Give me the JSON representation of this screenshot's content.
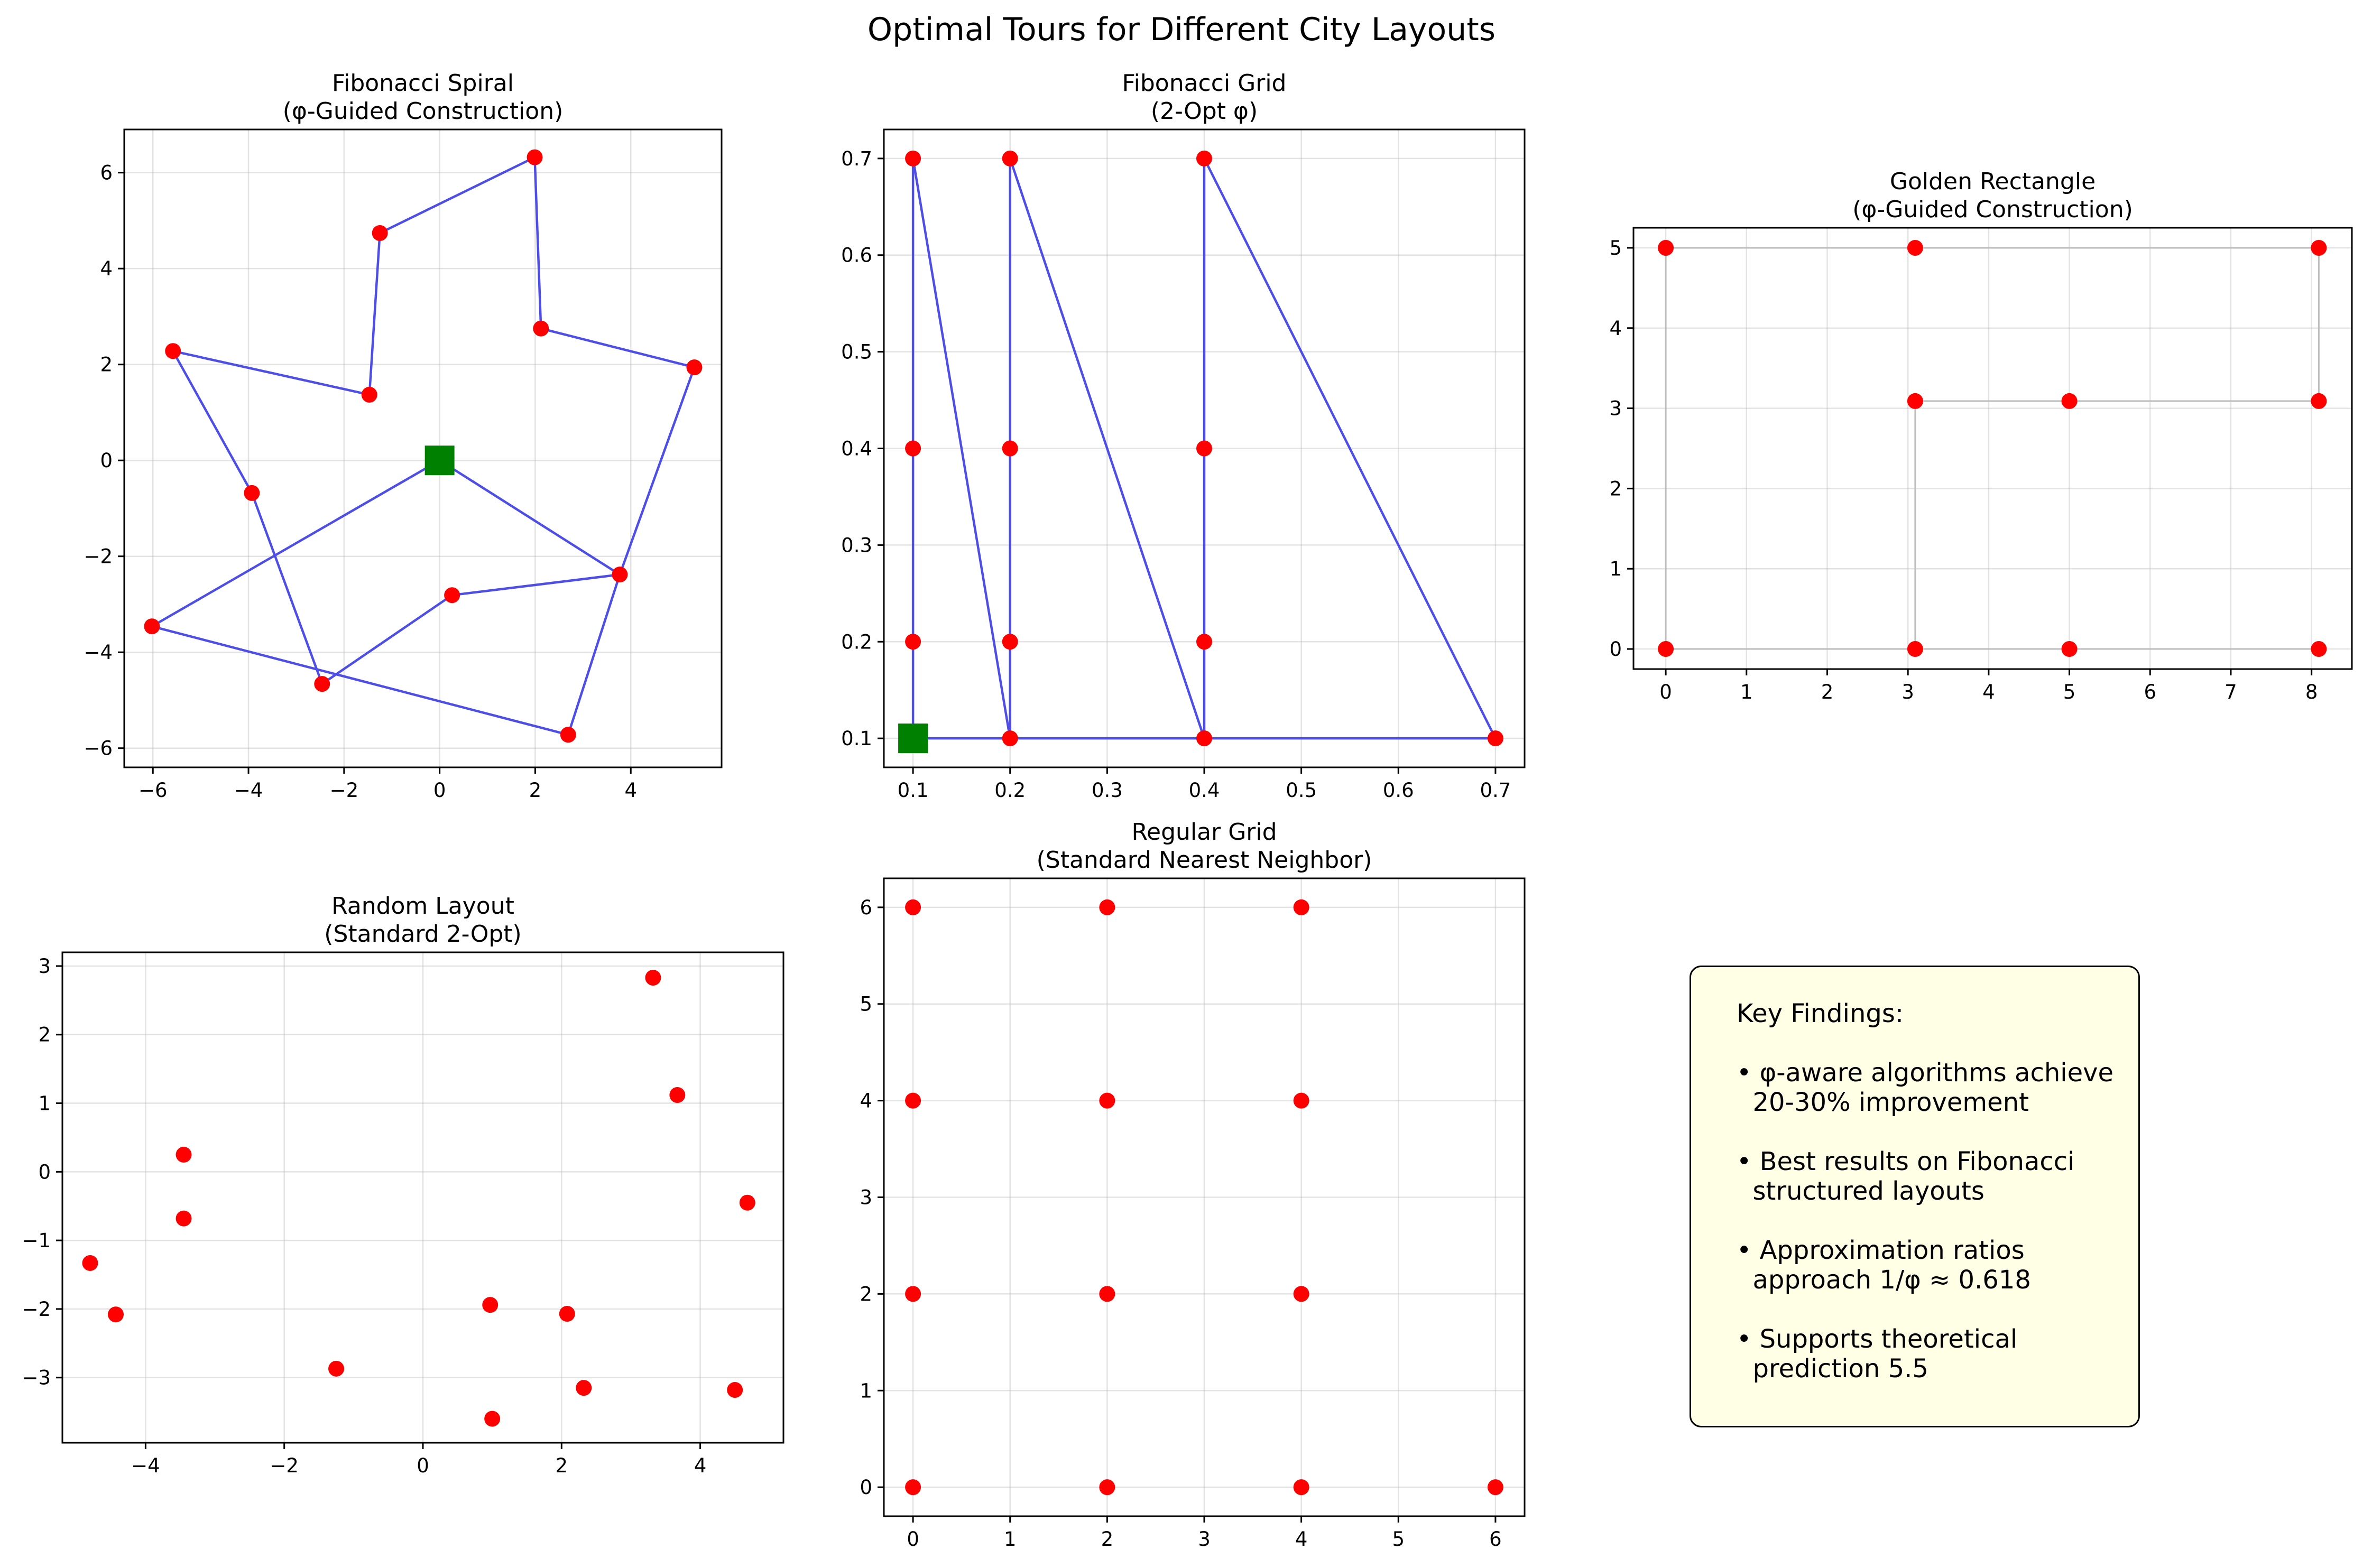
{
  "figure": {
    "title": "Optimal Tours for Different City Layouts"
  },
  "chart_data": [
    {
      "id": "fib-spiral",
      "type": "line",
      "title_lines": [
        "Fibonacci Spiral",
        "(φ-Guided Construction)"
      ],
      "xlim": [
        -6.6,
        5.9
      ],
      "ylim": [
        -6.4,
        6.9
      ],
      "xticks": [
        -6,
        -4,
        -2,
        0,
        2,
        4
      ],
      "yticks": [
        -6,
        -4,
        -2,
        0,
        2,
        4,
        6
      ],
      "xtick_labels": [
        "−6",
        "−4",
        "−2",
        "0",
        "2",
        "4"
      ],
      "ytick_labels": [
        "−6",
        "−4",
        "−2",
        "0",
        "2",
        "4",
        "6"
      ],
      "grid": true,
      "tour": [
        [
          0,
          0
        ],
        [
          3.77,
          -2.38
        ],
        [
          5.33,
          1.94
        ],
        [
          2.12,
          2.75
        ],
        [
          1.99,
          6.32
        ],
        [
          -1.25,
          4.74
        ],
        [
          -1.47,
          1.37
        ],
        [
          -5.58,
          2.28
        ],
        [
          -3.93,
          -0.68
        ],
        [
          -2.46,
          -4.66
        ],
        [
          0.26,
          -2.81
        ],
        [
          3.77,
          -2.38
        ],
        [
          2.69,
          -5.72
        ],
        [
          -6.02,
          -3.46
        ],
        [
          0,
          0
        ]
      ],
      "cities": [
        [
          0.26,
          -2.81
        ],
        [
          3.77,
          -2.38
        ],
        [
          5.33,
          1.94
        ],
        [
          2.12,
          2.75
        ],
        [
          1.99,
          6.32
        ],
        [
          -1.25,
          4.74
        ],
        [
          -1.47,
          1.37
        ],
        [
          -5.58,
          2.28
        ],
        [
          -3.93,
          -0.68
        ],
        [
          -2.46,
          -4.66
        ],
        [
          2.69,
          -5.72
        ],
        [
          -6.02,
          -3.46
        ]
      ],
      "start": [
        0,
        0
      ],
      "line_color": "#4d4de8",
      "city_color": "#ff0000",
      "start_color": "#008000"
    },
    {
      "id": "fib-grid",
      "type": "line",
      "title_lines": [
        "Fibonacci Grid",
        "(2-Opt φ)"
      ],
      "xlim": [
        0.07,
        0.73
      ],
      "ylim": [
        0.07,
        0.73
      ],
      "xticks": [
        0.1,
        0.2,
        0.3,
        0.4,
        0.5,
        0.6,
        0.7
      ],
      "yticks": [
        0.1,
        0.2,
        0.3,
        0.4,
        0.5,
        0.6,
        0.7
      ],
      "xtick_labels": [
        "0.1",
        "0.2",
        "0.3",
        "0.4",
        "0.5",
        "0.6",
        "0.7"
      ],
      "ytick_labels": [
        "0.1",
        "0.2",
        "0.3",
        "0.4",
        "0.5",
        "0.6",
        "0.7"
      ],
      "grid": true,
      "tour": [
        [
          0.1,
          0.1
        ],
        [
          0.1,
          0.2
        ],
        [
          0.1,
          0.4
        ],
        [
          0.1,
          0.7
        ],
        [
          0.2,
          0.1
        ],
        [
          0.2,
          0.2
        ],
        [
          0.2,
          0.4
        ],
        [
          0.2,
          0.7
        ],
        [
          0.4,
          0.1
        ],
        [
          0.4,
          0.2
        ],
        [
          0.4,
          0.4
        ],
        [
          0.4,
          0.7
        ],
        [
          0.7,
          0.1
        ],
        [
          0.4,
          0.1
        ],
        [
          0.2,
          0.1
        ],
        [
          0.1,
          0.1
        ]
      ],
      "cities": [
        [
          0.1,
          0.2
        ],
        [
          0.1,
          0.4
        ],
        [
          0.1,
          0.7
        ],
        [
          0.2,
          0.1
        ],
        [
          0.2,
          0.2
        ],
        [
          0.2,
          0.4
        ],
        [
          0.2,
          0.7
        ],
        [
          0.4,
          0.1
        ],
        [
          0.4,
          0.2
        ],
        [
          0.4,
          0.4
        ],
        [
          0.4,
          0.7
        ],
        [
          0.7,
          0.1
        ]
      ],
      "start": [
        0.1,
        0.1
      ],
      "line_color": "#4d4de8",
      "city_color": "#ff0000",
      "start_color": "#008000"
    },
    {
      "id": "golden-rect",
      "type": "line",
      "title_lines": [
        "Golden Rectangle",
        "(φ-Guided Construction)"
      ],
      "xlim": [
        -0.4,
        8.5
      ],
      "ylim": [
        -0.25,
        5.25
      ],
      "xticks": [
        0,
        1,
        2,
        3,
        4,
        5,
        6,
        7,
        8
      ],
      "yticks": [
        0,
        1,
        2,
        3,
        4,
        5
      ],
      "xtick_labels": [
        "0",
        "1",
        "2",
        "3",
        "4",
        "5",
        "6",
        "7",
        "8"
      ],
      "ytick_labels": [
        "0",
        "1",
        "2",
        "3",
        "4",
        "5"
      ],
      "grid": true,
      "tour": [
        [
          0,
          0
        ],
        [
          0,
          5
        ],
        [
          3.09,
          5
        ],
        [
          8.09,
          5
        ],
        [
          8.09,
          3.09
        ],
        [
          5,
          3.09
        ],
        [
          3.09,
          3.09
        ],
        [
          3.09,
          0
        ],
        [
          5,
          0
        ],
        [
          8.09,
          0
        ],
        [
          0,
          0
        ]
      ],
      "cities": [
        [
          0,
          0
        ],
        [
          0,
          5
        ],
        [
          3.09,
          5
        ],
        [
          8.09,
          5
        ],
        [
          8.09,
          3.09
        ],
        [
          5,
          3.09
        ],
        [
          3.09,
          3.09
        ],
        [
          3.09,
          0
        ],
        [
          5,
          0
        ],
        [
          8.09,
          0
        ]
      ],
      "line_color": "#bdbdbd",
      "city_color": "#ff0000"
    },
    {
      "id": "random",
      "type": "scatter",
      "title_lines": [
        "Random Layout",
        "(Standard 2-Opt)"
      ],
      "xlim": [
        -5.2,
        5.2
      ],
      "ylim": [
        -3.95,
        3.2
      ],
      "xticks": [
        -4,
        -2,
        0,
        2,
        4
      ],
      "yticks": [
        -3,
        -2,
        -1,
        0,
        1,
        2,
        3
      ],
      "xtick_labels": [
        "−4",
        "−2",
        "0",
        "2",
        "4"
      ],
      "ytick_labels": [
        "−3",
        "−2",
        "−1",
        "0",
        "1",
        "2",
        "3"
      ],
      "grid": true,
      "cities": [
        [
          -4.8,
          -1.33
        ],
        [
          -4.43,
          -2.08
        ],
        [
          -3.45,
          0.25
        ],
        [
          -3.45,
          -0.68
        ],
        [
          -1.25,
          -2.87
        ],
        [
          0.97,
          -1.94
        ],
        [
          1.0,
          -3.6
        ],
        [
          2.08,
          -2.07
        ],
        [
          2.32,
          -3.15
        ],
        [
          3.32,
          2.83
        ],
        [
          3.67,
          1.12
        ],
        [
          4.5,
          -3.18
        ],
        [
          4.68,
          -0.45
        ]
      ],
      "city_color": "#ff0000"
    },
    {
      "id": "regular-grid",
      "type": "scatter",
      "title_lines": [
        "Regular Grid",
        "(Standard Nearest Neighbor)"
      ],
      "xlim": [
        -0.3,
        6.3
      ],
      "ylim": [
        -0.3,
        6.3
      ],
      "xticks": [
        0,
        1,
        2,
        3,
        4,
        5,
        6
      ],
      "yticks": [
        0,
        1,
        2,
        3,
        4,
        5,
        6
      ],
      "xtick_labels": [
        "0",
        "1",
        "2",
        "3",
        "4",
        "5",
        "6"
      ],
      "ytick_labels": [
        "0",
        "1",
        "2",
        "3",
        "4",
        "5",
        "6"
      ],
      "grid": true,
      "cities": [
        [
          0,
          0
        ],
        [
          0,
          2
        ],
        [
          0,
          4
        ],
        [
          0,
          6
        ],
        [
          2,
          0
        ],
        [
          2,
          2
        ],
        [
          2,
          4
        ],
        [
          2,
          6
        ],
        [
          4,
          0
        ],
        [
          4,
          2
        ],
        [
          4,
          4
        ],
        [
          4,
          6
        ],
        [
          6,
          0
        ]
      ],
      "city_color": "#ff0000"
    }
  ],
  "findings": {
    "lines": [
      "Key Findings:",
      "",
      "• φ-aware algorithms achieve",
      "  20-30% improvement",
      "",
      "• Best results on Fibonacci",
      "  structured layouts",
      "",
      "• Approximation ratios",
      "  approach 1/φ ≈ 0.618",
      "",
      "• Supports theoretical",
      "  prediction 5.5"
    ]
  }
}
